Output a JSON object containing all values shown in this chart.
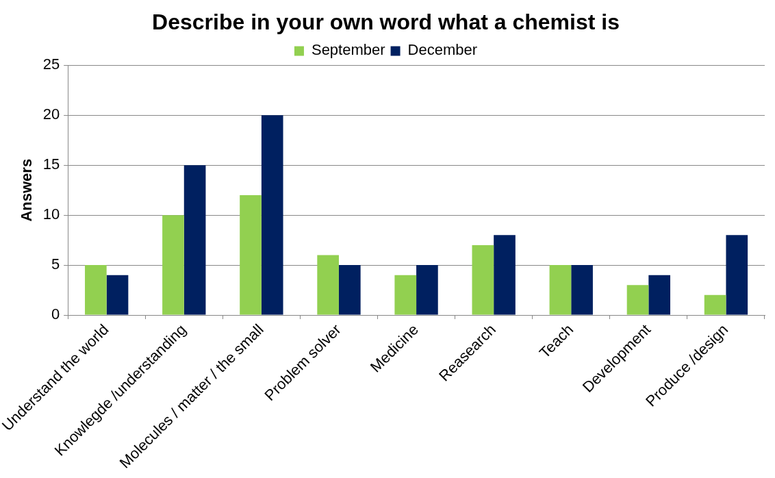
{
  "chart_data": {
    "type": "bar",
    "title": "Describe in your own word what a chemist is",
    "ylabel": "Answers",
    "categories": [
      "Understand the world",
      "Knowlegde /understanding",
      "Molecules / matter / the small",
      "Problem solver",
      "Medicine",
      "Reasearch",
      "Teach",
      "Development",
      "Produce /design"
    ],
    "series": [
      {
        "name": "September",
        "color": "#92d050",
        "values": [
          5,
          10,
          12,
          6,
          4,
          7,
          5,
          3,
          2
        ]
      },
      {
        "name": "December",
        "color": "#002060",
        "values": [
          4,
          15,
          20,
          5,
          5,
          8,
          5,
          4,
          8
        ]
      }
    ],
    "ylim": [
      0,
      25
    ],
    "yticks": [
      0,
      5,
      10,
      15,
      20,
      25
    ],
    "grid": "y",
    "legend": "top"
  }
}
